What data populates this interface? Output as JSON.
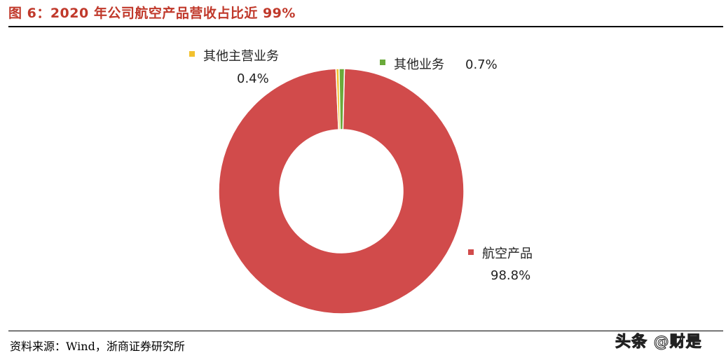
{
  "header": {
    "title": "图 6：2020 年公司航空产品营收占比近 99%"
  },
  "footer": {
    "source": "资料来源：Wind，浙商证券研究所",
    "watermark": "头条 @财是"
  },
  "chart_data": {
    "type": "pie",
    "donut": true,
    "slices": [
      {
        "label": "航空产品",
        "value": 98.8,
        "value_label": "98.8%",
        "color": "#d14b4b"
      },
      {
        "label": "其他主营业务",
        "value": 0.4,
        "value_label": "0.4%",
        "color": "#f2c12e"
      },
      {
        "label": "其他业务",
        "value": 0.7,
        "value_label": "0.7%",
        "color": "#6aaa3a"
      }
    ],
    "legend": "inline labels"
  }
}
